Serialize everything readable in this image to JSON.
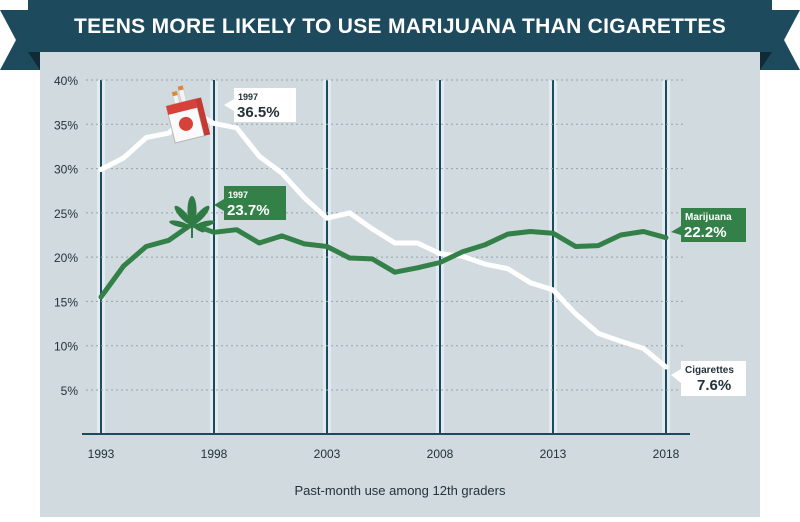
{
  "chart_data": {
    "type": "line",
    "title": "TEENS MORE LIKELY TO USE MARIJUANA THAN CIGARETTES",
    "xlabel": "Past-month use among 12th graders",
    "ylabel": "",
    "xlim": [
      1993,
      2018
    ],
    "ylim": [
      0,
      40
    ],
    "x_ticks": [
      "1993",
      "1998",
      "2003",
      "2008",
      "2013",
      "2018"
    ],
    "y_ticks": [
      "5%",
      "10%",
      "15%",
      "20%",
      "25%",
      "30%",
      "35%",
      "40%"
    ],
    "x": [
      1993,
      1994,
      1995,
      1996,
      1997,
      1998,
      1999,
      2000,
      2001,
      2002,
      2003,
      2004,
      2005,
      2006,
      2007,
      2008,
      2009,
      2010,
      2011,
      2012,
      2013,
      2014,
      2015,
      2016,
      2017,
      2018
    ],
    "series": [
      {
        "name": "Cigarettes",
        "values": [
          29.9,
          31.2,
          33.5,
          34.0,
          36.5,
          35.1,
          34.6,
          31.4,
          29.5,
          26.7,
          24.4,
          25.0,
          23.2,
          21.6,
          21.6,
          20.4,
          20.1,
          19.2,
          18.7,
          17.1,
          16.3,
          13.6,
          11.4,
          10.5,
          9.7,
          7.6
        ]
      },
      {
        "name": "Marijuana",
        "values": [
          15.5,
          19.0,
          21.2,
          21.9,
          23.7,
          22.8,
          23.1,
          21.6,
          22.4,
          21.5,
          21.2,
          19.9,
          19.8,
          18.3,
          18.8,
          19.4,
          20.6,
          21.4,
          22.6,
          22.9,
          22.7,
          21.2,
          21.3,
          22.5,
          22.9,
          22.2
        ]
      }
    ],
    "callouts": [
      {
        "id": "cig-1997",
        "year": "1997",
        "value": "36.5%"
      },
      {
        "id": "mar-1997",
        "year": "1997",
        "value": "23.7%"
      },
      {
        "id": "mar-2018",
        "label": "Marijuana",
        "value": "22.2%"
      },
      {
        "id": "cig-2018",
        "label": "Cigarettes",
        "value": "7.6%"
      }
    ],
    "icons": [
      "cigarette-pack-icon",
      "cannabis-leaf-icon"
    ],
    "grid": true
  },
  "colors": {
    "banner": "#1d4a5c",
    "banner_dark": "#133545",
    "panel": "#d0dadf",
    "grid_dash": "#97a4ab",
    "cigarettes": "#ffffff",
    "marijuana": "#338048",
    "text": "#23323a",
    "vband": "#e2ecf0"
  }
}
